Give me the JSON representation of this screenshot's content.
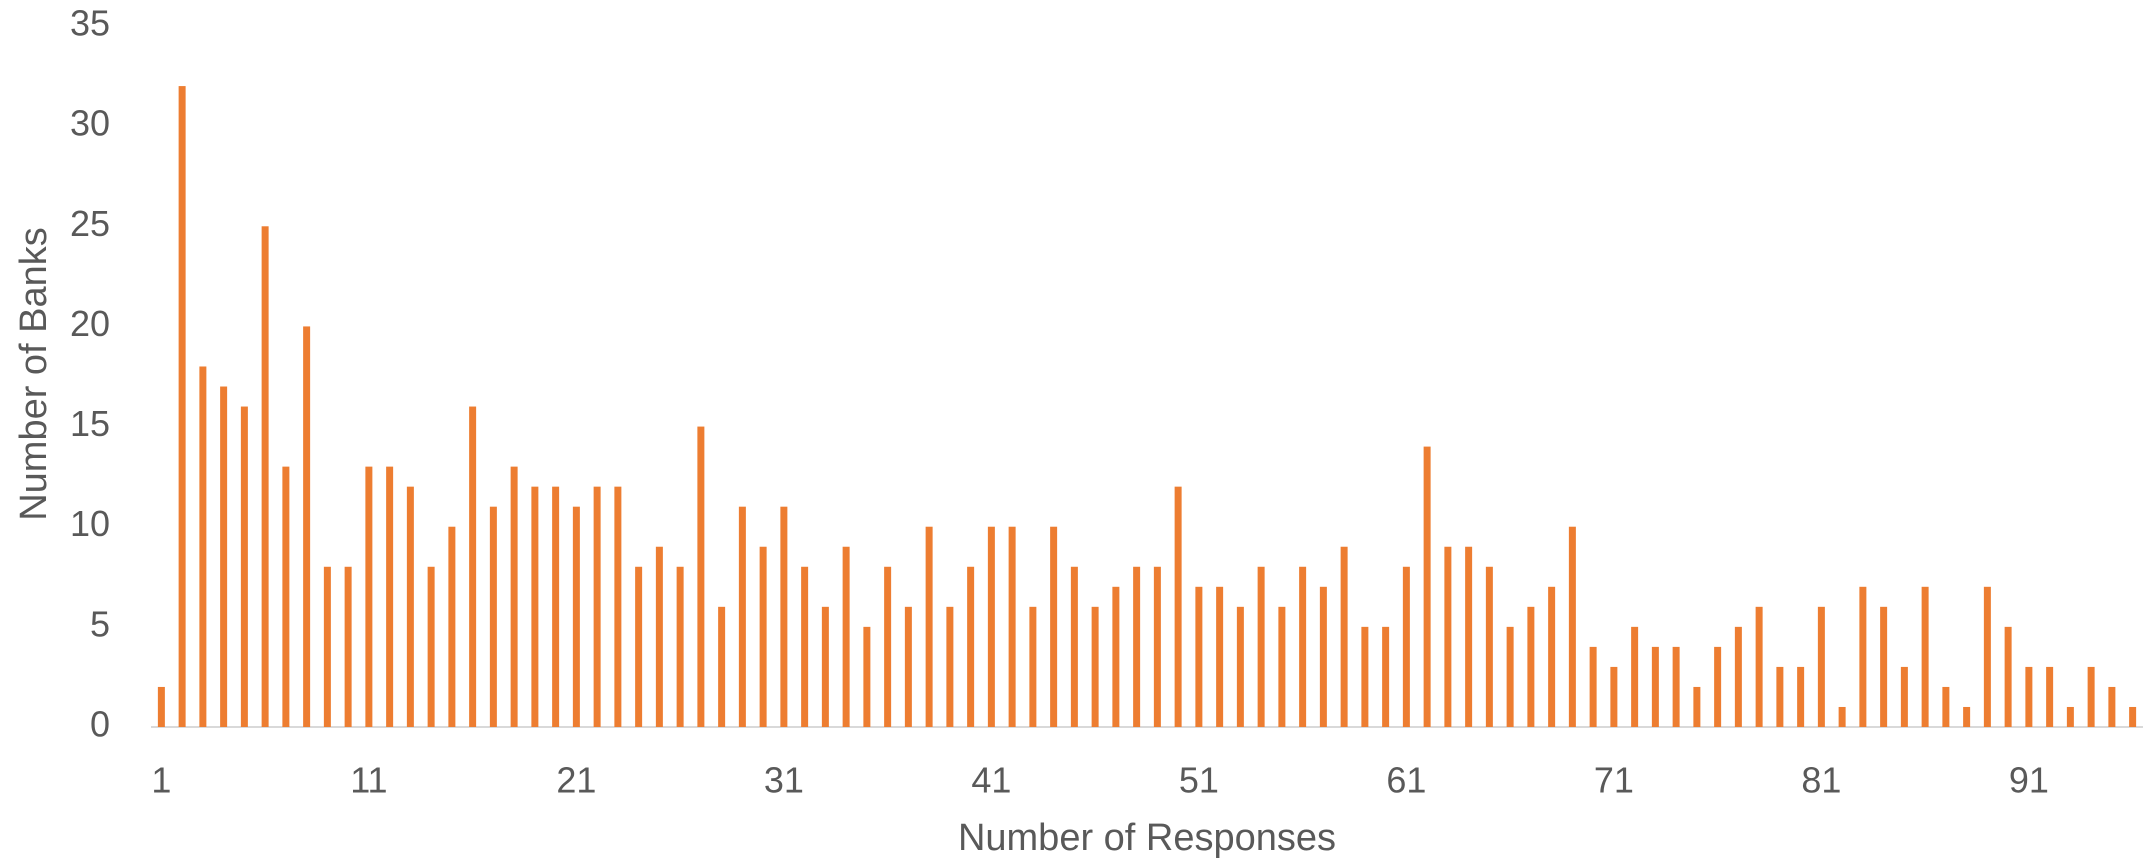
{
  "chart_data": {
    "type": "bar",
    "x_label": "Number of Responses",
    "y_label": "Number of Banks",
    "categories": [
      1,
      null,
      null,
      null,
      null,
      null,
      null,
      null,
      null,
      null,
      11,
      null,
      null,
      null,
      null,
      null,
      null,
      null,
      null,
      null,
      21,
      null,
      null,
      null,
      null,
      null,
      null,
      null,
      null,
      null,
      31,
      null,
      null,
      null,
      null,
      null,
      null,
      null,
      null,
      null,
      41,
      null,
      null,
      null,
      null,
      null,
      null,
      null,
      null,
      null,
      51,
      null,
      null,
      null,
      null,
      null,
      null,
      null,
      null,
      null,
      61,
      null,
      null,
      null,
      null,
      null,
      null,
      null,
      null,
      null,
      71,
      null,
      null,
      null,
      null,
      null,
      null,
      null,
      null,
      null,
      81,
      null,
      null,
      null,
      null,
      null,
      null,
      null,
      null,
      null,
      91,
      null,
      null,
      null,
      null,
      null
    ],
    "values": [
      2,
      32,
      18,
      17,
      16,
      25,
      13,
      20,
      8,
      8,
      13,
      13,
      12,
      8,
      10,
      16,
      11,
      13,
      12,
      12,
      11,
      12,
      12,
      8,
      9,
      8,
      15,
      6,
      11,
      9,
      11,
      8,
      6,
      9,
      5,
      8,
      6,
      10,
      6,
      8,
      10,
      10,
      6,
      10,
      8,
      6,
      7,
      8,
      8,
      12,
      7,
      7,
      6,
      8,
      6,
      8,
      7,
      9,
      5,
      5,
      8,
      14,
      9,
      9,
      8,
      5,
      6,
      7,
      10,
      4,
      3,
      5,
      4,
      4,
      2,
      4,
      5,
      6,
      3,
      3,
      6,
      1,
      7,
      6,
      3,
      7,
      2,
      1,
      7,
      5,
      3,
      3,
      1,
      3,
      2,
      1
    ],
    "color": "#ed7d31",
    "ylim": [
      0,
      35
    ],
    "yticks": [
      0,
      5,
      10,
      15,
      20,
      25,
      30,
      35
    ],
    "grid": false
  }
}
